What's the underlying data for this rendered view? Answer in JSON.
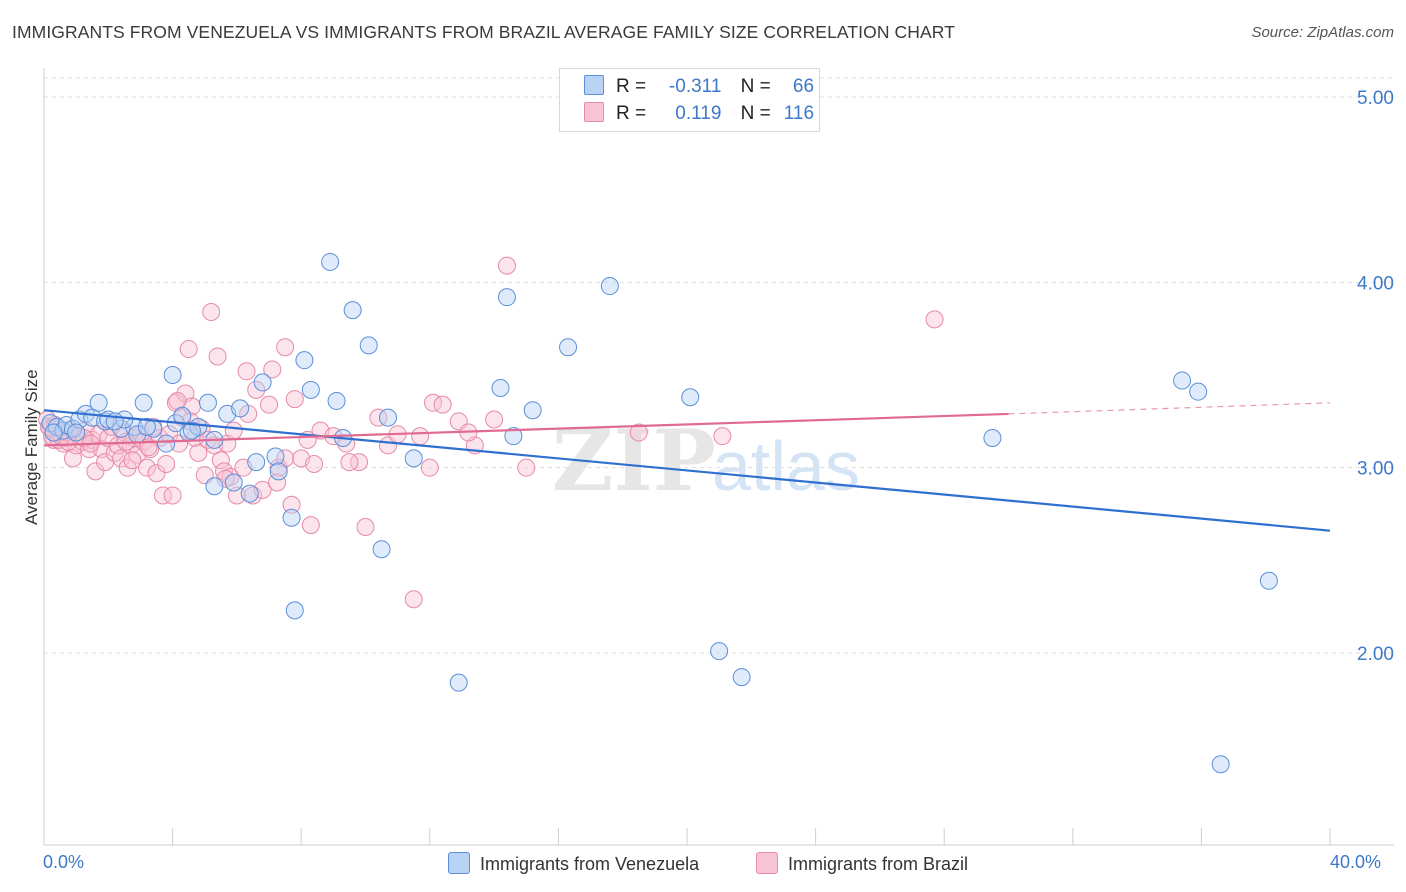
{
  "title": "IMMIGRANTS FROM VENEZUELA VS IMMIGRANTS FROM BRAZIL AVERAGE FAMILY SIZE CORRELATION CHART",
  "source": "Source: ZipAtlas.com",
  "legend_top": [
    {
      "r_label": "R =",
      "r_value": "-0.311",
      "n_label": "N =",
      "n_value": "66"
    },
    {
      "r_label": "R =",
      "r_value": "0.119",
      "n_label": "N =",
      "n_value": "116"
    }
  ],
  "colors": {
    "venezuela": "#5b8fd9",
    "venezuela_fill": "#b9d3f5",
    "venezuela_line": "#2f6fcf",
    "brazil": "#e78aa8",
    "brazil_fill": "#f8c3d4",
    "brazil_line": "#e06a92",
    "tick_text": "#3d78c9",
    "grid": "#dddddd"
  },
  "watermark": {
    "zip": "ZIP",
    "atlas": "atlas"
  },
  "chart_data": {
    "type": "scatter",
    "title": "IMMIGRANTS FROM VENEZUELA VS IMMIGRANTS FROM BRAZIL AVERAGE FAMILY SIZE CORRELATION CHART",
    "xlabel": "",
    "ylabel": "Average Family Size",
    "xlim": [
      0,
      40
    ],
    "ylim": [
      1.0,
      5.1
    ],
    "x_tick_labels": [
      "0.0%",
      "40.0%"
    ],
    "y_ticks": [
      2.0,
      3.0,
      4.0,
      5.0
    ],
    "y_tick_labels": [
      "2.00",
      "3.00",
      "4.00",
      "5.00"
    ],
    "grid": true,
    "legend_position": "top-center",
    "series": [
      {
        "name": "Immigrants from Venezuela",
        "r": -0.311,
        "n": 66,
        "trend": {
          "x": [
            0,
            40
          ],
          "y": [
            3.31,
            2.66
          ]
        },
        "points": [
          [
            0.2,
            3.24
          ],
          [
            0.4,
            3.22
          ],
          [
            0.6,
            3.2
          ],
          [
            0.7,
            3.23
          ],
          [
            0.9,
            3.21
          ],
          [
            1.1,
            3.26
          ],
          [
            1.3,
            3.29
          ],
          [
            1.5,
            3.27
          ],
          [
            1.7,
            3.35
          ],
          [
            1.9,
            3.25
          ],
          [
            2.0,
            3.26
          ],
          [
            2.4,
            3.21
          ],
          [
            2.8,
            3.22
          ],
          [
            2.9,
            3.18
          ],
          [
            3.1,
            3.35
          ],
          [
            3.4,
            3.21
          ],
          [
            3.8,
            3.13
          ],
          [
            4.0,
            3.5
          ],
          [
            4.1,
            3.24
          ],
          [
            4.3,
            3.28
          ],
          [
            4.5,
            3.19
          ],
          [
            4.8,
            3.22
          ],
          [
            5.1,
            3.35
          ],
          [
            5.3,
            3.15
          ],
          [
            5.3,
            2.9
          ],
          [
            5.7,
            3.29
          ],
          [
            5.9,
            2.92
          ],
          [
            6.1,
            3.32
          ],
          [
            6.4,
            2.86
          ],
          [
            6.6,
            3.03
          ],
          [
            6.8,
            3.46
          ],
          [
            7.2,
            3.06
          ],
          [
            7.3,
            2.98
          ],
          [
            7.7,
            2.73
          ],
          [
            7.8,
            2.23
          ],
          [
            8.1,
            3.58
          ],
          [
            8.3,
            3.42
          ],
          [
            8.9,
            4.11
          ],
          [
            9.1,
            3.36
          ],
          [
            9.3,
            3.16
          ],
          [
            9.6,
            3.85
          ],
          [
            10.1,
            3.66
          ],
          [
            10.5,
            2.56
          ],
          [
            10.7,
            3.27
          ],
          [
            11.5,
            3.05
          ],
          [
            12.9,
            1.84
          ],
          [
            14.2,
            3.43
          ],
          [
            14.4,
            3.92
          ],
          [
            14.6,
            3.17
          ],
          [
            15.2,
            3.31
          ],
          [
            16.3,
            3.65
          ],
          [
            17.6,
            3.98
          ],
          [
            20.1,
            3.38
          ],
          [
            21.0,
            2.01
          ],
          [
            21.7,
            1.87
          ],
          [
            29.5,
            3.16
          ],
          [
            35.4,
            3.47
          ],
          [
            35.9,
            3.41
          ],
          [
            38.1,
            2.39
          ],
          [
            36.6,
            1.4
          ],
          [
            0.3,
            3.19
          ],
          [
            1.0,
            3.19
          ],
          [
            2.5,
            3.26
          ],
          [
            3.2,
            3.22
          ],
          [
            4.6,
            3.2
          ],
          [
            2.2,
            3.25
          ]
        ]
      },
      {
        "name": "Immigrants from Brazil",
        "r": 0.119,
        "n": 116,
        "trend": {
          "x": [
            0,
            30
          ],
          "y": [
            3.12,
            3.29
          ]
        },
        "trend_dashed": {
          "x": [
            30,
            40
          ],
          "y": [
            3.29,
            3.35
          ]
        },
        "points": [
          [
            0.1,
            3.26
          ],
          [
            0.2,
            3.21
          ],
          [
            0.3,
            3.15
          ],
          [
            0.4,
            3.18
          ],
          [
            0.5,
            3.21
          ],
          [
            0.6,
            3.13
          ],
          [
            0.7,
            3.16
          ],
          [
            0.8,
            3.2
          ],
          [
            0.9,
            3.05
          ],
          [
            1.0,
            3.12
          ],
          [
            1.1,
            3.17
          ],
          [
            1.2,
            3.14
          ],
          [
            1.3,
            3.2
          ],
          [
            1.4,
            3.1
          ],
          [
            1.5,
            3.15
          ],
          [
            1.6,
            2.98
          ],
          [
            1.7,
            3.18
          ],
          [
            1.8,
            3.1
          ],
          [
            1.9,
            3.03
          ],
          [
            2.0,
            3.16
          ],
          [
            2.1,
            3.22
          ],
          [
            2.2,
            3.08
          ],
          [
            2.3,
            3.12
          ],
          [
            2.4,
            3.05
          ],
          [
            2.5,
            3.19
          ],
          [
            2.6,
            3.0
          ],
          [
            2.7,
            3.12
          ],
          [
            2.8,
            3.16
          ],
          [
            2.9,
            3.07
          ],
          [
            3.0,
            3.18
          ],
          [
            3.1,
            3.14
          ],
          [
            3.2,
            3.0
          ],
          [
            3.3,
            3.1
          ],
          [
            3.4,
            3.22
          ],
          [
            3.5,
            2.97
          ],
          [
            3.6,
            3.16
          ],
          [
            3.7,
            2.85
          ],
          [
            3.8,
            3.02
          ],
          [
            3.9,
            3.18
          ],
          [
            4.0,
            2.85
          ],
          [
            4.1,
            3.35
          ],
          [
            4.2,
            3.13
          ],
          [
            4.3,
            3.27
          ],
          [
            4.4,
            3.4
          ],
          [
            4.5,
            3.64
          ],
          [
            4.6,
            3.33
          ],
          [
            4.7,
            3.16
          ],
          [
            4.8,
            3.08
          ],
          [
            4.9,
            3.21
          ],
          [
            5.0,
            2.96
          ],
          [
            5.1,
            3.15
          ],
          [
            5.2,
            3.84
          ],
          [
            5.3,
            3.12
          ],
          [
            5.4,
            3.6
          ],
          [
            5.5,
            3.04
          ],
          [
            5.6,
            2.98
          ],
          [
            5.7,
            3.13
          ],
          [
            5.8,
            2.95
          ],
          [
            5.9,
            3.2
          ],
          [
            6.0,
            2.85
          ],
          [
            6.2,
            3.0
          ],
          [
            6.3,
            3.52
          ],
          [
            6.5,
            2.85
          ],
          [
            6.6,
            3.42
          ],
          [
            6.8,
            2.88
          ],
          [
            7.0,
            3.34
          ],
          [
            7.1,
            3.53
          ],
          [
            7.3,
            3.0
          ],
          [
            7.5,
            3.05
          ],
          [
            7.5,
            3.65
          ],
          [
            7.8,
            3.37
          ],
          [
            8.0,
            3.05
          ],
          [
            8.2,
            3.15
          ],
          [
            8.3,
            2.69
          ],
          [
            8.4,
            3.02
          ],
          [
            8.6,
            3.2
          ],
          [
            9.0,
            3.17
          ],
          [
            9.4,
            3.13
          ],
          [
            9.8,
            3.03
          ],
          [
            10.0,
            2.68
          ],
          [
            10.4,
            3.27
          ],
          [
            10.7,
            3.12
          ],
          [
            11.0,
            3.18
          ],
          [
            11.7,
            3.17
          ],
          [
            12.0,
            3.0
          ],
          [
            12.1,
            3.35
          ],
          [
            12.4,
            3.34
          ],
          [
            12.9,
            3.25
          ],
          [
            13.4,
            3.12
          ],
          [
            14.0,
            3.26
          ],
          [
            14.4,
            4.09
          ],
          [
            15.0,
            3.0
          ],
          [
            18.5,
            3.19
          ],
          [
            21.1,
            3.17
          ],
          [
            27.7,
            3.8
          ],
          [
            0.15,
            3.22
          ],
          [
            0.25,
            3.17
          ],
          [
            0.35,
            3.23
          ],
          [
            0.45,
            3.15
          ],
          [
            0.55,
            3.17
          ],
          [
            0.65,
            3.19
          ],
          [
            0.75,
            3.14
          ],
          [
            1.25,
            3.16
          ],
          [
            1.45,
            3.13
          ],
          [
            2.55,
            3.14
          ],
          [
            2.75,
            3.04
          ],
          [
            3.25,
            3.11
          ],
          [
            4.15,
            3.36
          ],
          [
            4.55,
            3.25
          ],
          [
            5.65,
            2.94
          ],
          [
            6.35,
            3.29
          ],
          [
            7.25,
            2.92
          ],
          [
            7.7,
            2.8
          ],
          [
            9.5,
            3.03
          ],
          [
            11.5,
            2.29
          ],
          [
            13.2,
            3.19
          ]
        ]
      }
    ]
  },
  "bottom_legend": [
    "Immigrants from Venezuela",
    "Immigrants from Brazil"
  ]
}
